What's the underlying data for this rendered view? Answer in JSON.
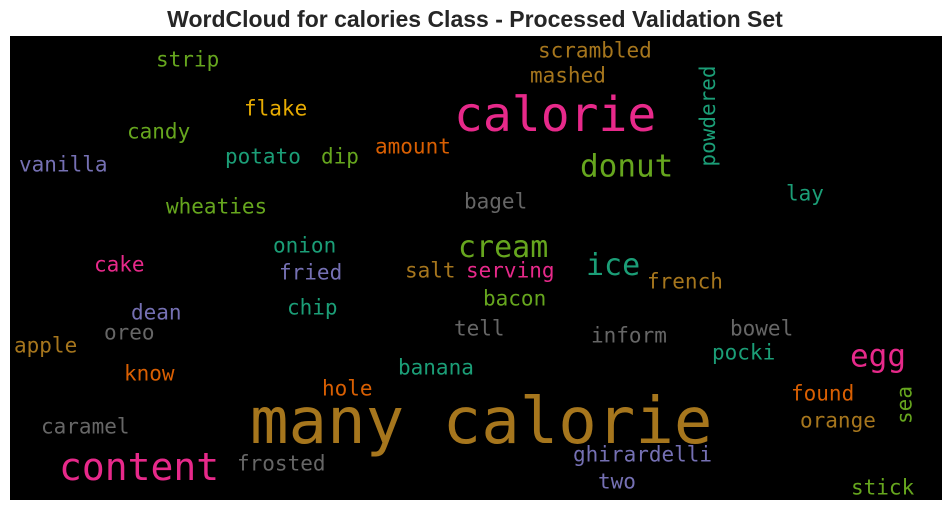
{
  "title": "WordCloud for calories Class - Processed Validation Set",
  "words": [
    {
      "text": "many calorie",
      "color": "#a6761d"
    },
    {
      "text": "calorie",
      "color": "#e7298a"
    },
    {
      "text": "content",
      "color": "#e7298a"
    },
    {
      "text": "donut",
      "color": "#66a61e"
    },
    {
      "text": "cream",
      "color": "#66a61e"
    },
    {
      "text": "egg",
      "color": "#e7298a"
    },
    {
      "text": "ice",
      "color": "#1b9e77"
    },
    {
      "text": "scrambled",
      "color": "#a6761d"
    },
    {
      "text": "mashed",
      "color": "#a6761d"
    },
    {
      "text": "strip",
      "color": "#66a61e"
    },
    {
      "text": "flake",
      "color": "#e6ab02"
    },
    {
      "text": "candy",
      "color": "#66a61e"
    },
    {
      "text": "potato",
      "color": "#1b9e77"
    },
    {
      "text": "dip",
      "color": "#66a61e"
    },
    {
      "text": "amount",
      "color": "#d95f02"
    },
    {
      "text": "vanilla",
      "color": "#7570b3"
    },
    {
      "text": "powdered",
      "color": "#1b9e77"
    },
    {
      "text": "lay",
      "color": "#1b9e77"
    },
    {
      "text": "bagel",
      "color": "#666666"
    },
    {
      "text": "wheaties",
      "color": "#66a61e"
    },
    {
      "text": "onion",
      "color": "#1b9e77"
    },
    {
      "text": "cake",
      "color": "#e7298a"
    },
    {
      "text": "fried",
      "color": "#7570b3"
    },
    {
      "text": "salt",
      "color": "#a6761d"
    },
    {
      "text": "serving",
      "color": "#e7298a"
    },
    {
      "text": "french",
      "color": "#a6761d"
    },
    {
      "text": "bacon",
      "color": "#66a61e"
    },
    {
      "text": "chip",
      "color": "#1b9e77"
    },
    {
      "text": "dean",
      "color": "#7570b3"
    },
    {
      "text": "oreo",
      "color": "#666666"
    },
    {
      "text": "tell",
      "color": "#666666"
    },
    {
      "text": "inform",
      "color": "#666666"
    },
    {
      "text": "bowel",
      "color": "#666666"
    },
    {
      "text": "apple",
      "color": "#a6761d"
    },
    {
      "text": "pocki",
      "color": "#1b9e77"
    },
    {
      "text": "know",
      "color": "#d95f02"
    },
    {
      "text": "banana",
      "color": "#1b9e77"
    },
    {
      "text": "hole",
      "color": "#d95f02"
    },
    {
      "text": "found",
      "color": "#d95f02"
    },
    {
      "text": "sea",
      "color": "#66a61e"
    },
    {
      "text": "orange",
      "color": "#a6761d"
    },
    {
      "text": "caramel",
      "color": "#666666"
    },
    {
      "text": "frosted",
      "color": "#666666"
    },
    {
      "text": "ghirardelli",
      "color": "#7570b3"
    },
    {
      "text": "two",
      "color": "#7570b3"
    },
    {
      "text": "stick",
      "color": "#66a61e"
    }
  ]
}
